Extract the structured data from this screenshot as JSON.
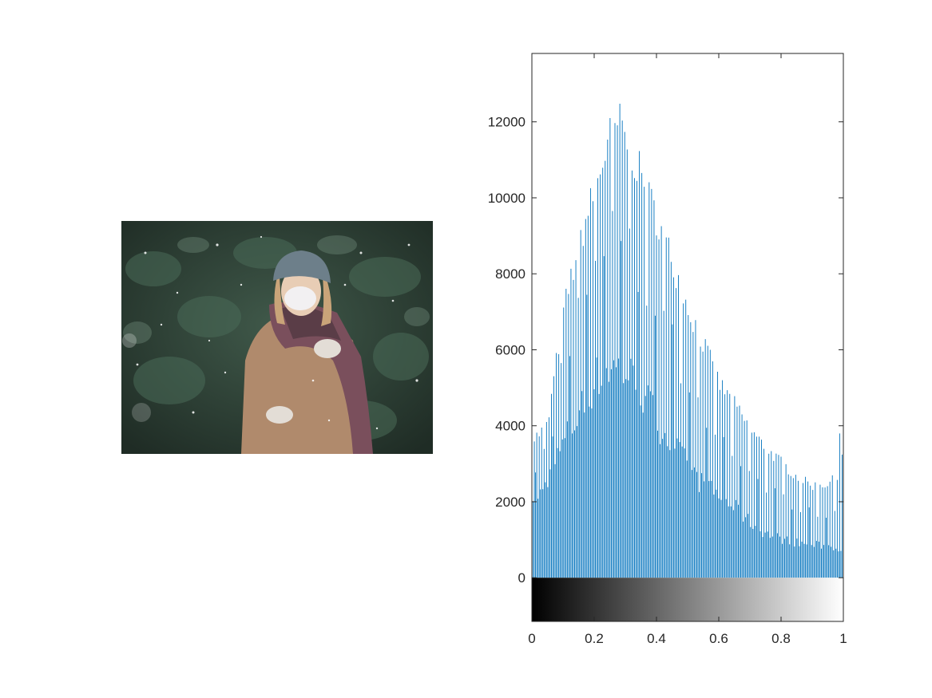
{
  "photo": {
    "subject": "woman-in-snow-photo"
  },
  "chart_data": {
    "type": "bar",
    "title": "",
    "xlabel": "",
    "ylabel": "",
    "xlim": [
      0,
      1
    ],
    "ylim": [
      -1150,
      13800
    ],
    "yticks": [
      0,
      2000,
      4000,
      6000,
      8000,
      10000,
      12000
    ],
    "ytick_labels": [
      "0",
      "2000",
      "4000",
      "6000",
      "8000",
      "10000",
      "12000"
    ],
    "xticks": [
      0,
      0.2,
      0.4,
      0.6,
      0.8,
      1
    ],
    "xtick_labels": [
      "0",
      "0.2",
      "0.4",
      "0.6",
      "0.8",
      "1"
    ],
    "grid": false,
    "bar_color": "#0072BD",
    "colorbar": "grayscale",
    "bins": 256,
    "envelope_high": [
      [
        0,
        3800
      ],
      [
        0.05,
        4200
      ],
      [
        0.1,
        7300
      ],
      [
        0.15,
        9200
      ],
      [
        0.2,
        10700
      ],
      [
        0.25,
        12200
      ],
      [
        0.28,
        12600
      ],
      [
        0.32,
        11800
      ],
      [
        0.36,
        10900
      ],
      [
        0.4,
        10000
      ],
      [
        0.45,
        8800
      ],
      [
        0.5,
        7500
      ],
      [
        0.55,
        6500
      ],
      [
        0.6,
        5400
      ],
      [
        0.65,
        4800
      ],
      [
        0.7,
        4100
      ],
      [
        0.75,
        3600
      ],
      [
        0.8,
        3200
      ],
      [
        0.85,
        2800
      ],
      [
        0.9,
        2550
      ],
      [
        0.95,
        2600
      ],
      [
        0.98,
        2800
      ],
      [
        0.99,
        4300
      ],
      [
        1,
        3000
      ]
    ],
    "envelope_low": [
      [
        0,
        1800
      ],
      [
        0.05,
        2600
      ],
      [
        0.1,
        3600
      ],
      [
        0.15,
        4400
      ],
      [
        0.2,
        5300
      ],
      [
        0.25,
        5700
      ],
      [
        0.3,
        5600
      ],
      [
        0.35,
        5000
      ],
      [
        0.4,
        4300
      ],
      [
        0.45,
        3600
      ],
      [
        0.5,
        3000
      ],
      [
        0.55,
        2500
      ],
      [
        0.6,
        2200
      ],
      [
        0.65,
        1900
      ],
      [
        0.7,
        1500
      ],
      [
        0.75,
        1200
      ],
      [
        0.8,
        1050
      ],
      [
        0.85,
        950
      ],
      [
        0.9,
        900
      ],
      [
        0.95,
        850
      ],
      [
        1,
        800
      ]
    ]
  }
}
